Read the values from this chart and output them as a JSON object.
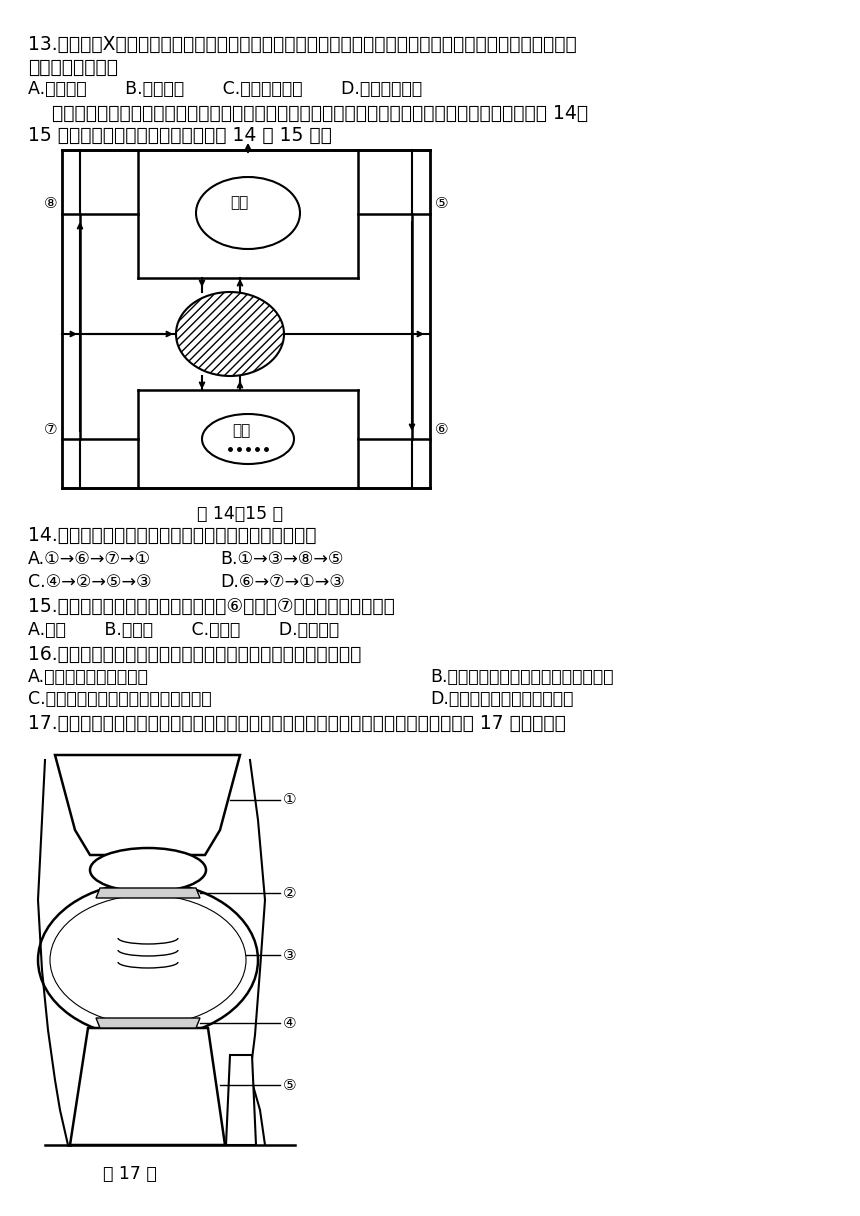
{
  "bg_color": "#ffffff",
  "text_color": "#000000",
  "q13_line1": "13.进行肺部X光检查时，医生常常要求受检者深吸气，这样便于更清晰地看到肺部组织的状况。下列对吸气",
  "q13_line2": "过程描述正确的是",
  "q13_opts": "A.膏顶上升       B.膏肌舒张       C.肺内压力增大       D.胸腔容积扩大",
  "intro1": "    循环系统将营养物质和氧迅速运往身体各处，同时将细胞产生的废物运走，维持正常的生命活动。题 14、",
  "intro2": "15 图是血液循环模式图，请分析回答 14 和 15 题。",
  "cap14": "题 14、15 图",
  "q14": "14.下列是有关血液在全身流动方向的表述，不正确的是",
  "q14_A": "A.①→⑥→⑦→①",
  "q14_B": "B.①→③→⑧→⑤",
  "q14_C": "C.④→②→⑤→③",
  "q14_D": "D.⑥→⑦→①→③",
  "q15": "15.若血液流经肆脏的组织，则与血管⑥相比，⑦中含量减少的物质有",
  "q15_opts": "A.尿素       B.蛋白质       C.血细胞       D.二氧化碳",
  "q16": "16.在达尔文的进化论里，关于人类的起源和发展，叙述错误的是",
  "q16_A": "A.人类的祖先是森林古猿",
  "q16_B": "B.环境的改变促进了森林古猿进化到人",
  "q16_C": "C.部分森林古猿向直立行走的方向发展",
  "q16_D": "D.现代类人猿可以进化成人类",
  "q17": "17.运动时佩戴包裹紧实的护腔、护膝等护具可避免关节受伤，这些护具的作用相当于题 17 图结构中的",
  "cap17": "题 17 图"
}
